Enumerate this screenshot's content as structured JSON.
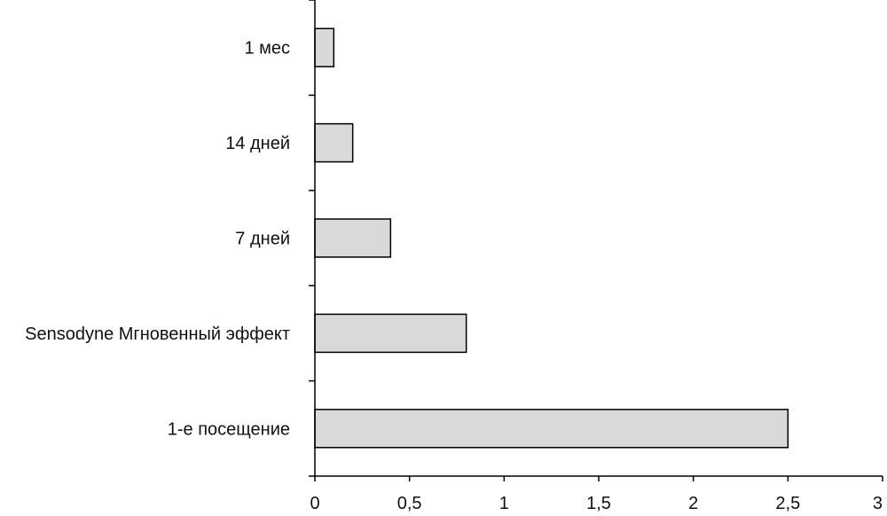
{
  "chart_data": {
    "type": "bar",
    "orientation": "horizontal",
    "categories": [
      "1 мес",
      "14 дней",
      "7 дней",
      "Sensodyne Мгновенный эффект",
      "1-е посещение"
    ],
    "values": [
      0.1,
      0.2,
      0.4,
      0.8,
      2.5
    ],
    "xlim": [
      0,
      3
    ],
    "x_ticks": [
      0,
      0.5,
      1,
      1.5,
      2,
      2.5,
      3
    ],
    "x_tick_labels": [
      "0",
      "0,5",
      "1",
      "1,5",
      "2",
      "2,5",
      "3"
    ],
    "title": "",
    "xlabel": "",
    "ylabel": "",
    "grid": false,
    "legend": "none",
    "bar_color": "#d9d9d9",
    "bar_edge_color": "#000000"
  }
}
